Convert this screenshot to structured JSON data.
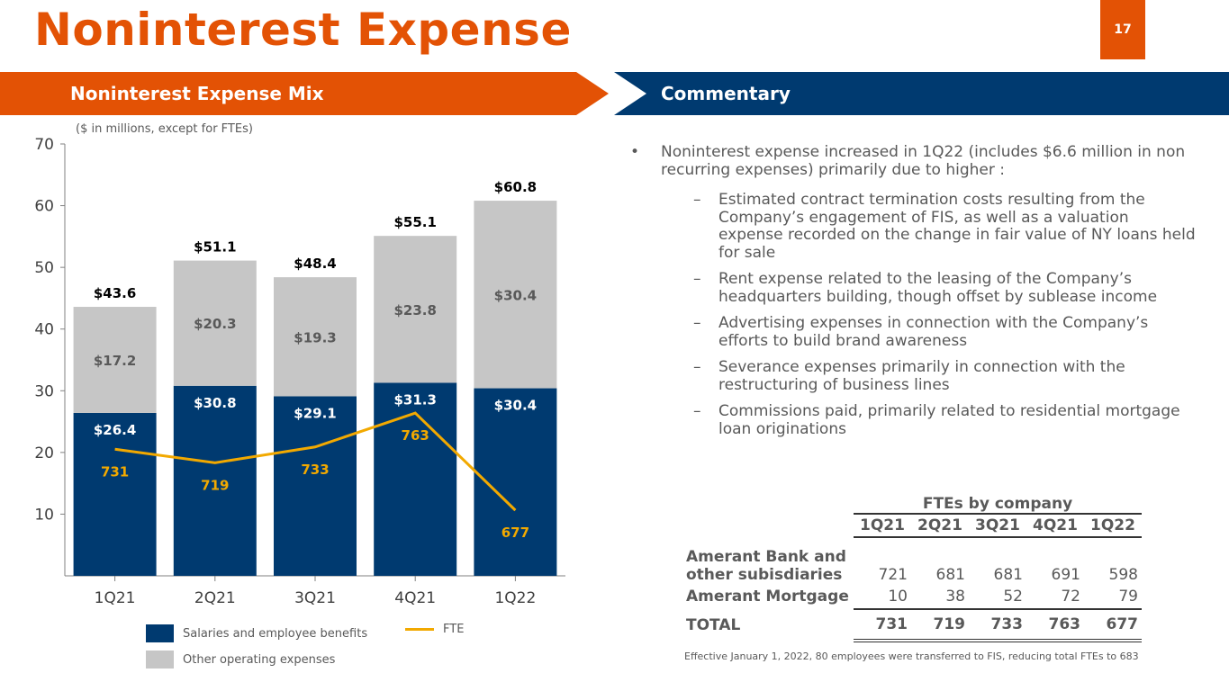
{
  "title": "Noninterest Expense",
  "page_number": "17",
  "left_header": "Noninterest Expense Mix",
  "right_header": "Commentary",
  "note": "($ in millions, except for FTEs)",
  "colors": {
    "orange": "#e35205",
    "navy": "#003a70",
    "gray": "#c6c6c6",
    "fte": "#f2a900"
  },
  "chart_data": {
    "type": "bar",
    "stacked": true,
    "categories": [
      "1Q21",
      "2Q21",
      "3Q21",
      "4Q21",
      "1Q22"
    ],
    "ylim": [
      0,
      70
    ],
    "yticks": [
      "10",
      "20",
      "30",
      "40",
      "50",
      "60",
      "70"
    ],
    "series": [
      {
        "name": "Salaries and employee benefits",
        "values": [
          26.4,
          30.8,
          29.1,
          31.3,
          30.4
        ],
        "labels": [
          "$26.4",
          "$30.8",
          "$29.1",
          "$31.3",
          "$30.4"
        ]
      },
      {
        "name": "Other operating expenses",
        "values": [
          17.2,
          20.3,
          19.3,
          23.8,
          30.4
        ],
        "labels": [
          "$17.2",
          "$20.3",
          "$19.3",
          "$23.8",
          "$30.4"
        ]
      }
    ],
    "totals": [
      "$43.6",
      "$51.1",
      "$48.4",
      "$55.1",
      "$60.8"
    ],
    "line": {
      "name": "FTE",
      "values": [
        731,
        719,
        733,
        763,
        677
      ],
      "labels": [
        "731",
        "719",
        "733",
        "763",
        "677"
      ],
      "secondary_range": [
        619,
        1001
      ]
    },
    "legend": "bottom"
  },
  "commentary": {
    "bullet": "Noninterest expense increased in 1Q22 (includes $6.6 million in non recurring expenses) primarily due to higher :",
    "subs": [
      "Estimated contract termination costs resulting from the Company’s engagement of FIS, as well as a valuation expense recorded on the change in fair value of NY loans held for sale",
      "Rent expense related to the leasing of the Company’s headquarters building, though offset by sublease income",
      "Advertising expenses in connection with the Company’s efforts to build brand awareness",
      "Severance expenses primarily in connection with the restructuring of business lines",
      "Commissions paid, primarily related to residential mortgage loan originations"
    ]
  },
  "fte_table": {
    "caption": "FTEs by company",
    "columns": [
      "1Q21",
      "2Q21",
      "3Q21",
      "4Q21",
      "1Q22"
    ],
    "rows": [
      {
        "label": "Amerant Bank and other subisdiaries",
        "values": [
          "721",
          "681",
          "681",
          "691",
          "598"
        ]
      },
      {
        "label": "Amerant Mortgage",
        "values": [
          "10",
          "38",
          "52",
          "72",
          "79"
        ]
      }
    ],
    "total": {
      "label": "TOTAL",
      "values": [
        "731",
        "719",
        "733",
        "763",
        "677"
      ]
    },
    "footnote": "Effective January 1, 2022, 80 employees were transferred to FIS, reducing total FTEs to 683"
  }
}
